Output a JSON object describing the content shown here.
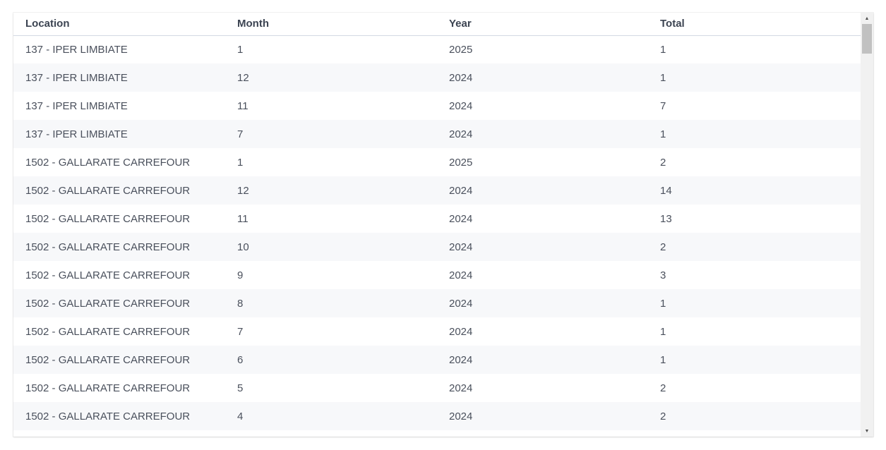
{
  "table": {
    "columns": [
      "Location",
      "Month",
      "Year",
      "Total"
    ],
    "rows": [
      {
        "location": "137 - IPER LIMBIATE",
        "month": "1",
        "year": "2025",
        "total": "1"
      },
      {
        "location": "137 - IPER LIMBIATE",
        "month": "12",
        "year": "2024",
        "total": "1"
      },
      {
        "location": "137 - IPER LIMBIATE",
        "month": "11",
        "year": "2024",
        "total": "7"
      },
      {
        "location": "137 - IPER LIMBIATE",
        "month": "7",
        "year": "2024",
        "total": "1"
      },
      {
        "location": "1502 - GALLARATE CARREFOUR",
        "month": "1",
        "year": "2025",
        "total": "2"
      },
      {
        "location": "1502 - GALLARATE CARREFOUR",
        "month": "12",
        "year": "2024",
        "total": "14"
      },
      {
        "location": "1502 - GALLARATE CARREFOUR",
        "month": "11",
        "year": "2024",
        "total": "13"
      },
      {
        "location": "1502 - GALLARATE CARREFOUR",
        "month": "10",
        "year": "2024",
        "total": "2"
      },
      {
        "location": "1502 - GALLARATE CARREFOUR",
        "month": "9",
        "year": "2024",
        "total": "3"
      },
      {
        "location": "1502 - GALLARATE CARREFOUR",
        "month": "8",
        "year": "2024",
        "total": "1"
      },
      {
        "location": "1502 - GALLARATE CARREFOUR",
        "month": "7",
        "year": "2024",
        "total": "1"
      },
      {
        "location": "1502 - GALLARATE CARREFOUR",
        "month": "6",
        "year": "2024",
        "total": "1"
      },
      {
        "location": "1502 - GALLARATE CARREFOUR",
        "month": "5",
        "year": "2024",
        "total": "2"
      },
      {
        "location": "1502 - GALLARATE CARREFOUR",
        "month": "4",
        "year": "2024",
        "total": "2"
      }
    ]
  },
  "scrollbar": {
    "up_icon": "arrow-up-icon",
    "down_icon": "arrow-down-icon"
  },
  "colors": {
    "header_text": "#3c4452",
    "cell_text": "#4a505c",
    "stripe": "#f7f8fa",
    "header_border": "#d3d9e3"
  }
}
